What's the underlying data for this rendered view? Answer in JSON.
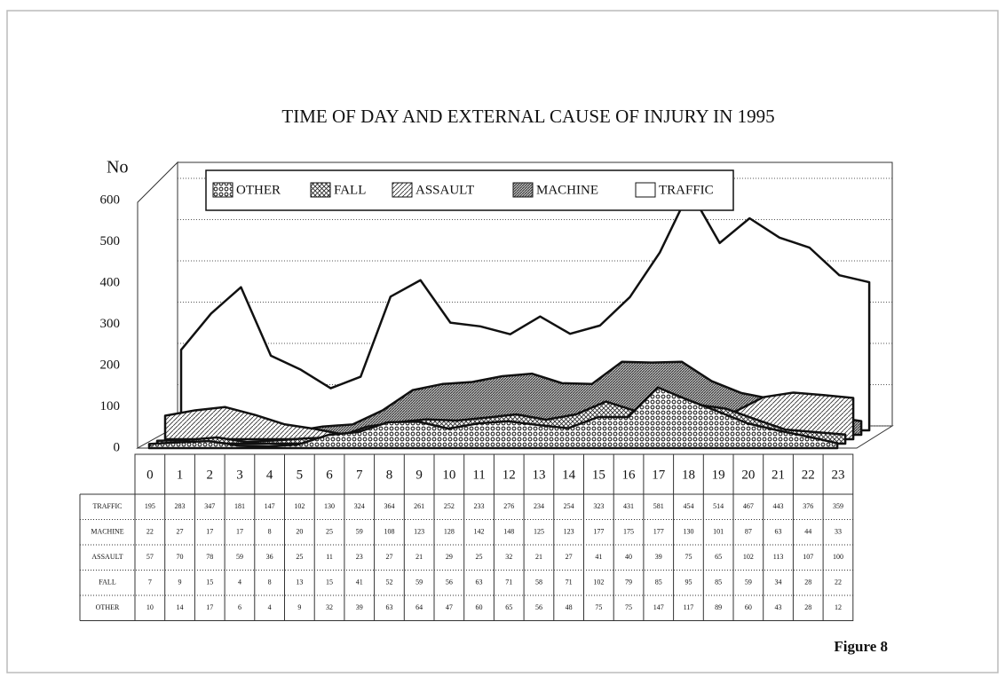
{
  "chart_data": {
    "type": "area",
    "title": "TIME OF DAY AND EXTERNAL CAUSE OF INJURY IN  1995",
    "y_label": "No",
    "annotation": "Figure 8",
    "x": [
      0,
      1,
      2,
      3,
      4,
      5,
      6,
      7,
      8,
      9,
      10,
      11,
      12,
      13,
      14,
      15,
      16,
      17,
      18,
      19,
      20,
      21,
      22,
      23
    ],
    "series": [
      {
        "name": "OTHER",
        "values": [
          10,
          14,
          17,
          6,
          4,
          9,
          32,
          39,
          63,
          64,
          47,
          60,
          65,
          56,
          48,
          75,
          75,
          147,
          117,
          89,
          60,
          43,
          28,
          12
        ]
      },
      {
        "name": "FALL",
        "values": [
          7,
          9,
          15,
          4,
          8,
          13,
          15,
          41,
          52,
          59,
          56,
          63,
          71,
          58,
          71,
          102,
          79,
          85,
          95,
          85,
          59,
          34,
          28,
          22
        ]
      },
      {
        "name": "ASSAULT",
        "values": [
          57,
          70,
          78,
          59,
          36,
          25,
          11,
          23,
          27,
          21,
          29,
          25,
          32,
          21,
          27,
          41,
          40,
          39,
          75,
          65,
          102,
          113,
          107,
          100
        ]
      },
      {
        "name": "MACHINE",
        "values": [
          22,
          27,
          17,
          17,
          8,
          20,
          25,
          59,
          108,
          123,
          128,
          142,
          148,
          125,
          123,
          177,
          175,
          177,
          130,
          101,
          87,
          63,
          44,
          33
        ]
      },
      {
        "name": "TRAFFIC",
        "values": [
          195,
          283,
          347,
          181,
          147,
          102,
          130,
          324,
          364,
          261,
          252,
          233,
          276,
          234,
          254,
          323,
          431,
          581,
          454,
          514,
          467,
          443,
          376,
          359
        ]
      }
    ],
    "ylim": [
      0,
      600
    ],
    "yticks": [
      0,
      100,
      200,
      300,
      400,
      500,
      600
    ],
    "grid": true
  }
}
